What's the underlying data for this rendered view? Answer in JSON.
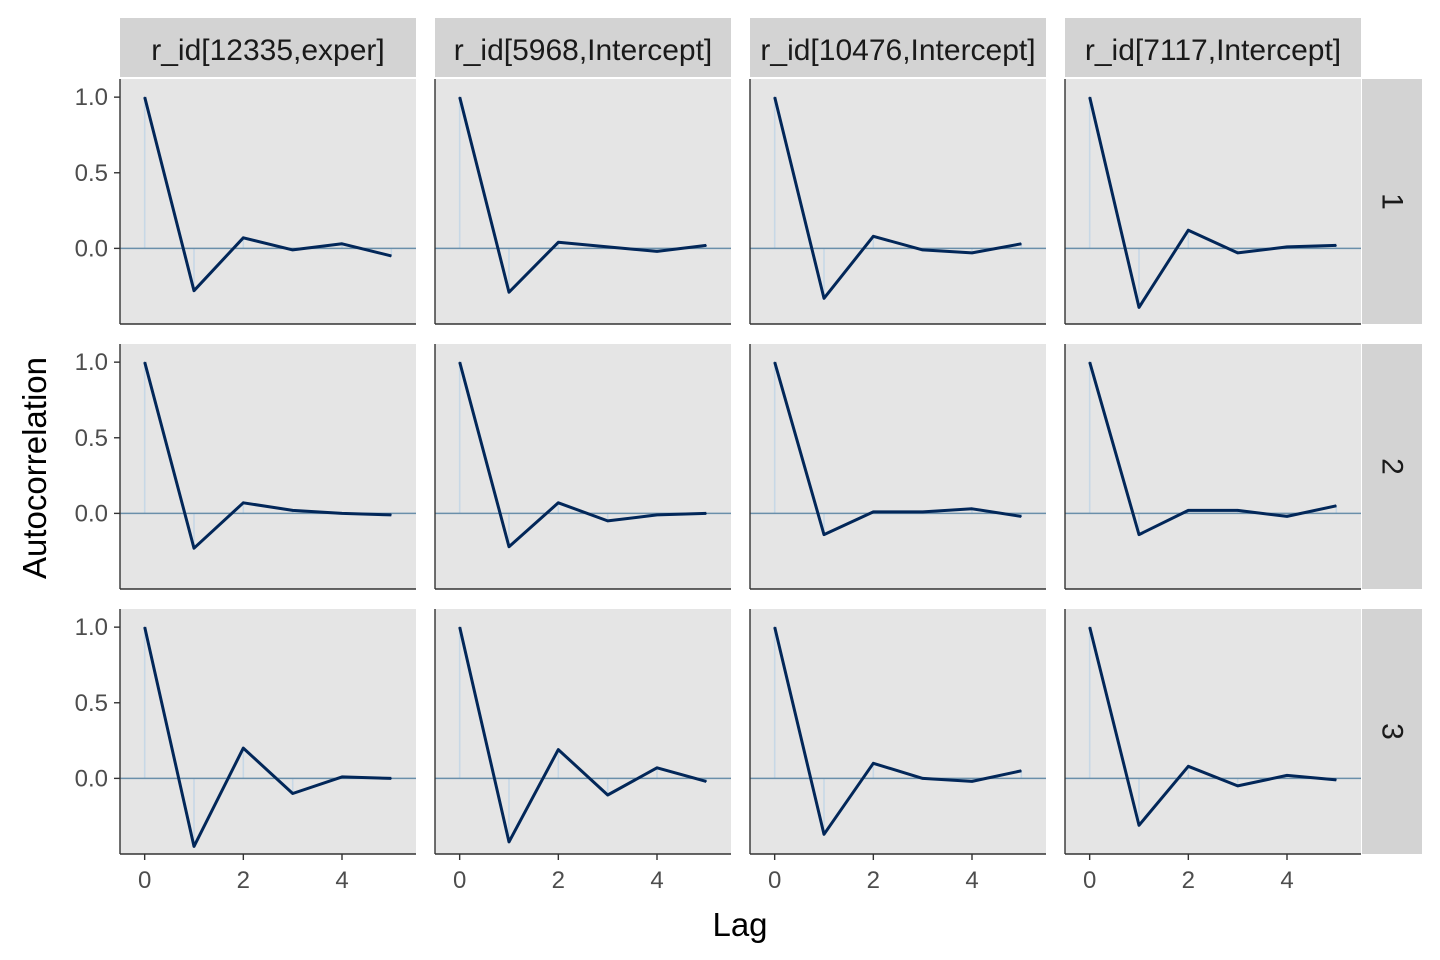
{
  "axis_labels": {
    "x": "Lag",
    "y": "Autocorrelation"
  },
  "colors": {
    "panel_background": "#e5e5e5",
    "strip_background": "#d3d3d3",
    "acf_line": "#022759",
    "zero_line": "#6a8faa",
    "acf_bar": "#c7d8e6",
    "axis": "#333333"
  },
  "chart_data": {
    "type": "line",
    "layout": "facet grid: columns = parameters, rows = chains",
    "xlabel": "Lag",
    "ylabel": "Autocorrelation",
    "xlim": [
      -0.5,
      5.5
    ],
    "ylim": [
      -0.5,
      1.12
    ],
    "x_ticks": [
      0,
      2,
      4
    ],
    "x_tick_labels": [
      "0",
      "2",
      "4"
    ],
    "y_ticks": [
      0,
      0.5,
      1
    ],
    "y_tick_labels": [
      "0.0",
      "0.5",
      "1.0"
    ],
    "lags": [
      0,
      1,
      2,
      3,
      4,
      5
    ],
    "facet_columns": [
      "r_id[12335,exper]",
      "r_id[5968,Intercept]",
      "r_id[10476,Intercept]",
      "r_id[7117,Intercept]"
    ],
    "facet_rows": [
      "1",
      "2",
      "3"
    ],
    "grid": false,
    "legend": "none",
    "panels": [
      {
        "column": "r_id[12335,exper]",
        "chain": "1",
        "values": [
          1.0,
          -0.28,
          0.07,
          -0.01,
          0.03,
          -0.05
        ]
      },
      {
        "column": "r_id[5968,Intercept]",
        "chain": "1",
        "values": [
          1.0,
          -0.29,
          0.04,
          0.01,
          -0.02,
          0.02
        ]
      },
      {
        "column": "r_id[10476,Intercept]",
        "chain": "1",
        "values": [
          1.0,
          -0.33,
          0.08,
          -0.01,
          -0.03,
          0.03
        ]
      },
      {
        "column": "r_id[7117,Intercept]",
        "chain": "1",
        "values": [
          1.0,
          -0.39,
          0.12,
          -0.03,
          0.01,
          0.02
        ]
      },
      {
        "column": "r_id[12335,exper]",
        "chain": "2",
        "values": [
          1.0,
          -0.23,
          0.07,
          0.02,
          0.0,
          -0.01
        ]
      },
      {
        "column": "r_id[5968,Intercept]",
        "chain": "2",
        "values": [
          1.0,
          -0.22,
          0.07,
          -0.05,
          -0.01,
          0.0
        ]
      },
      {
        "column": "r_id[10476,Intercept]",
        "chain": "2",
        "values": [
          1.0,
          -0.14,
          0.01,
          0.01,
          0.03,
          -0.02
        ]
      },
      {
        "column": "r_id[7117,Intercept]",
        "chain": "2",
        "values": [
          1.0,
          -0.14,
          0.02,
          0.02,
          -0.02,
          0.05
        ]
      },
      {
        "column": "r_id[12335,exper]",
        "chain": "3",
        "values": [
          1.0,
          -0.45,
          0.2,
          -0.1,
          0.01,
          0.0
        ]
      },
      {
        "column": "r_id[5968,Intercept]",
        "chain": "3",
        "values": [
          1.0,
          -0.42,
          0.19,
          -0.11,
          0.07,
          -0.02
        ]
      },
      {
        "column": "r_id[10476,Intercept]",
        "chain": "3",
        "values": [
          1.0,
          -0.37,
          0.1,
          0.0,
          -0.02,
          0.05
        ]
      },
      {
        "column": "r_id[7117,Intercept]",
        "chain": "3",
        "values": [
          1.0,
          -0.31,
          0.08,
          -0.05,
          0.02,
          -0.01
        ]
      }
    ]
  }
}
